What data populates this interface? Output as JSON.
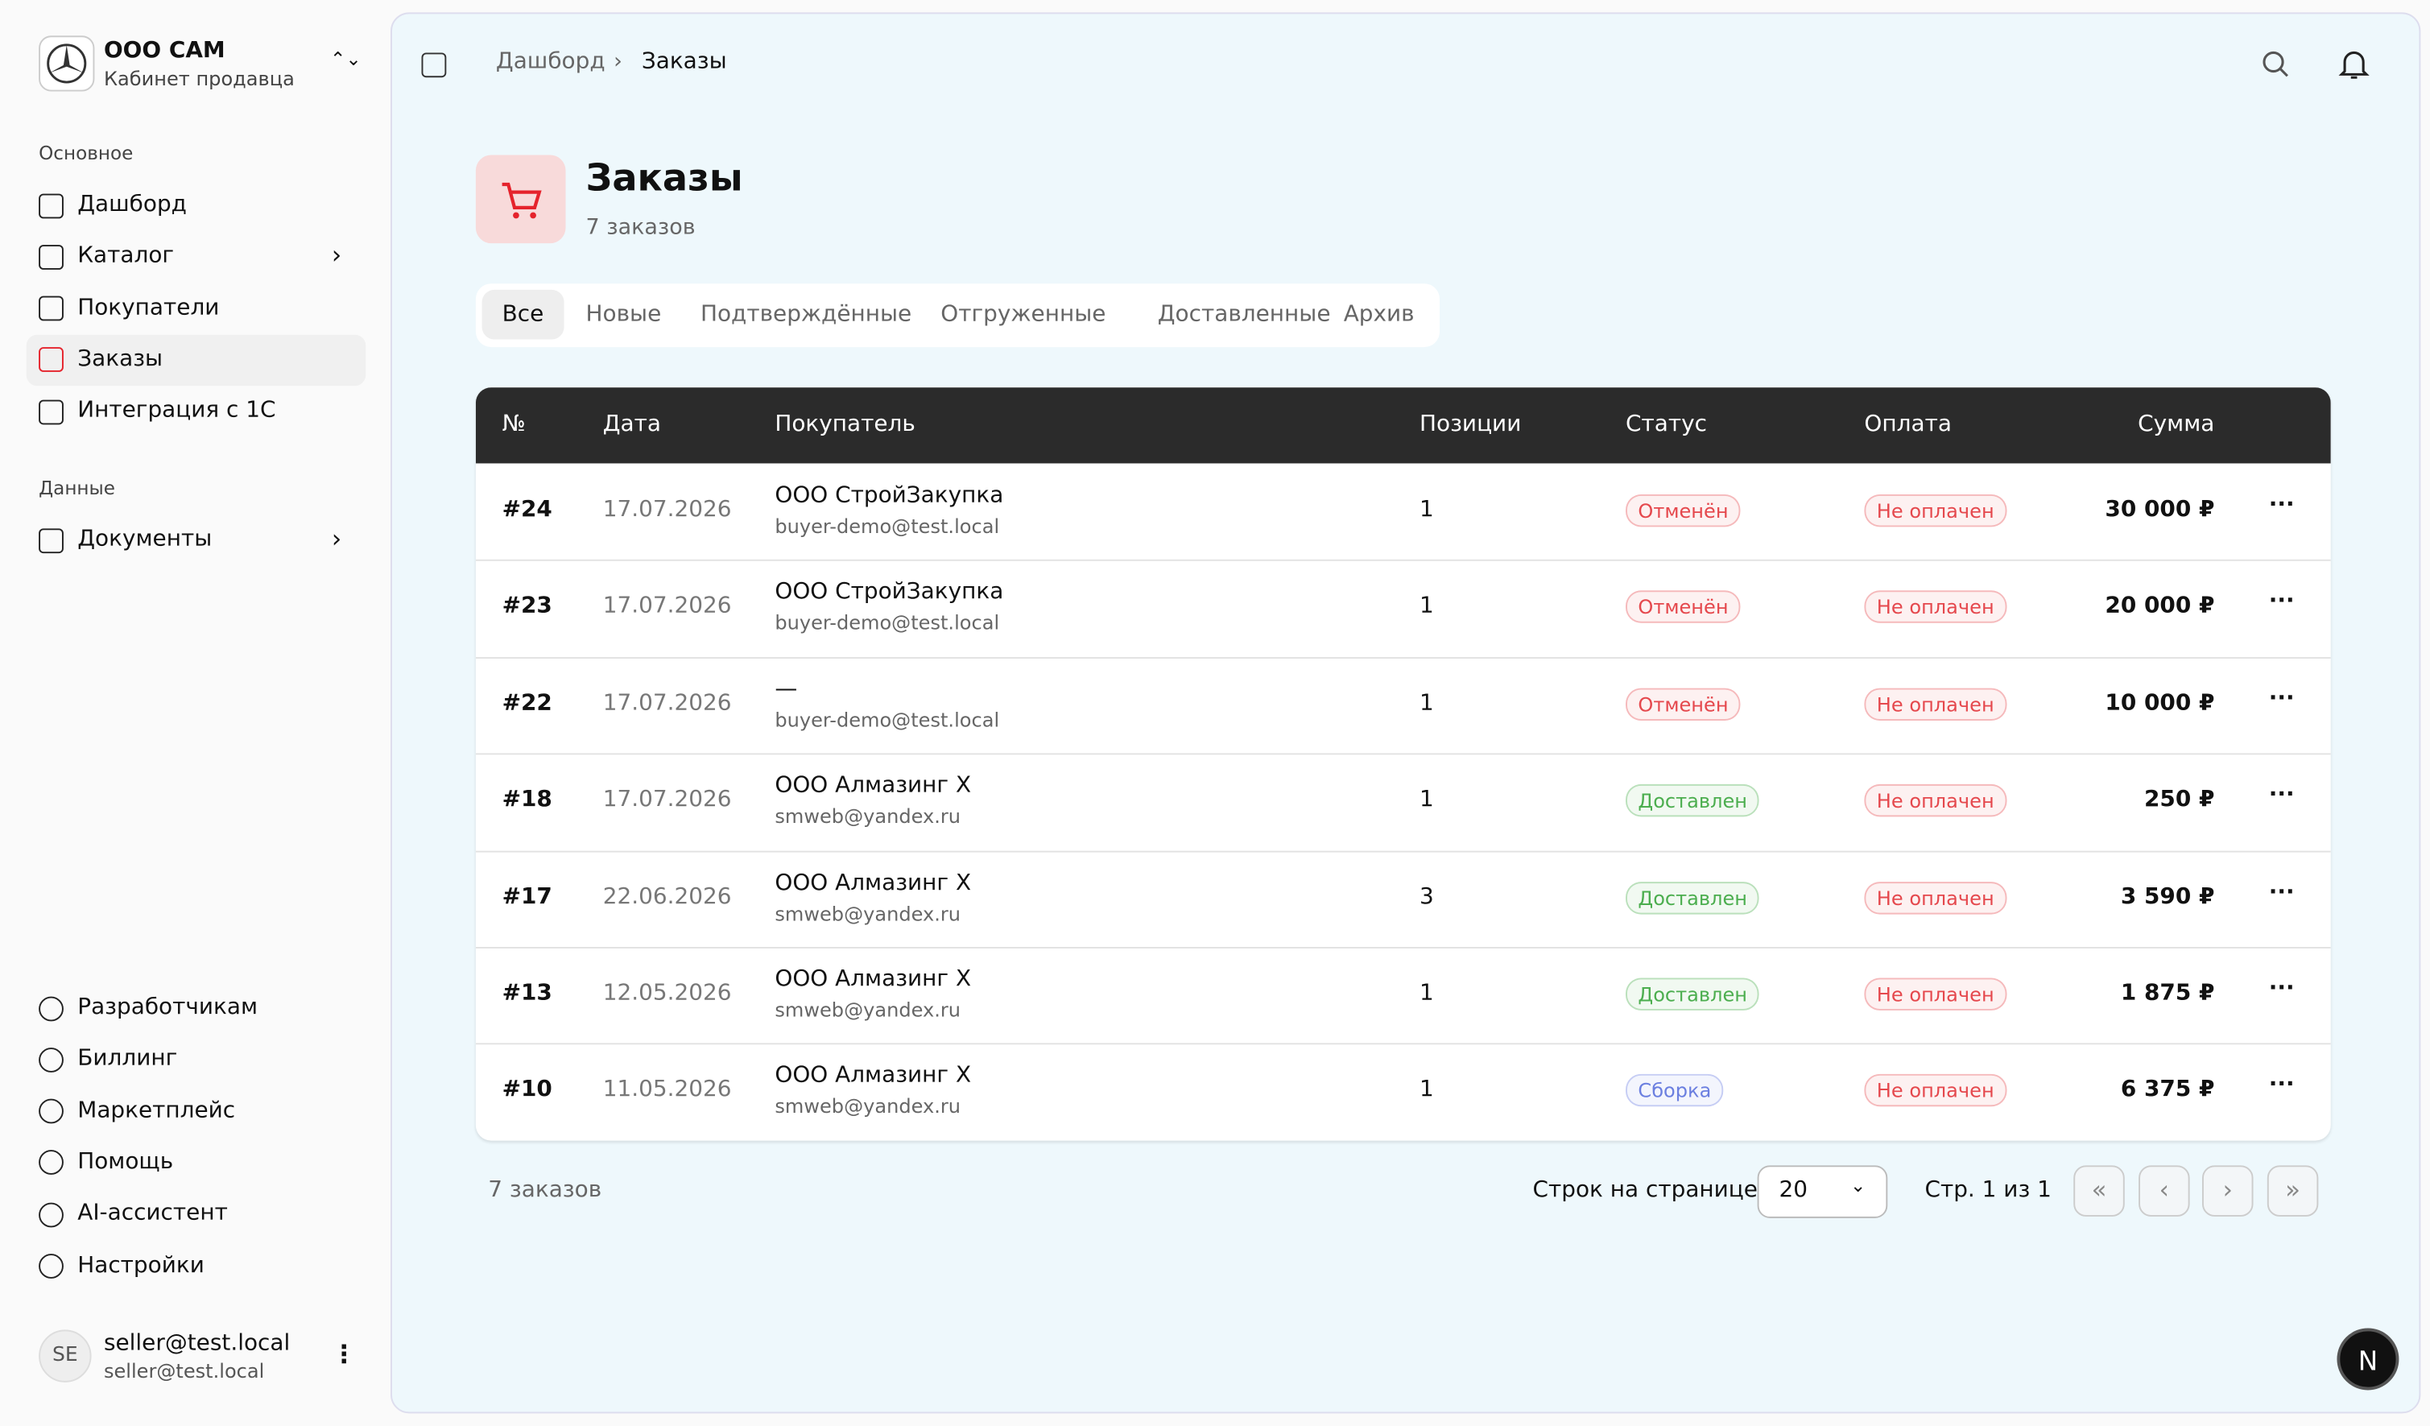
{
  "sidebar": {
    "org_name": "ООО САМ",
    "org_subtitle": "Кабинет продавца",
    "sections": [
      {
        "title": "Основное",
        "items": [
          "Дашборд",
          "Каталог",
          "Покупатели",
          "Заказы",
          "Интеграция с 1С"
        ]
      },
      {
        "title": "Данные",
        "items": [
          "Документы"
        ]
      }
    ],
    "bottom_items": [
      "Разработчикам",
      "Биллинг",
      "Маркетплейс",
      "Помощь",
      "AI-ассистент",
      "Настройки"
    ],
    "user": {
      "initials": "SE",
      "name": "seller@test.local",
      "email": "seller@test.local"
    }
  },
  "header": {
    "breadcrumbs": [
      "Дашборд",
      "Заказы"
    ]
  },
  "page": {
    "title": "Заказы",
    "subtitle": "7 заказов",
    "tabs": [
      "Все",
      "Новые",
      "Подтверждённые",
      "Отгруженные",
      "Доставленные",
      "Архив"
    ]
  },
  "table": {
    "columns": [
      "№",
      "Дата",
      "Покупатель",
      "Позиции",
      "Статус",
      "Оплата",
      "Сумма"
    ],
    "rows": [
      {
        "number": "#24",
        "date": "17.07.2026",
        "buyer": "ООО СтройЗакупка",
        "email": "buyer-demo@test.local",
        "items": "1",
        "status": "Отменён",
        "status_color": "#e5484d",
        "payment": "Не оплачен",
        "payment_color": "#e5484d",
        "sum": "30 000 ₽"
      },
      {
        "number": "#23",
        "date": "17.07.2026",
        "buyer": "ООО СтройЗакупка",
        "email": "buyer-demo@test.local",
        "items": "1",
        "status": "Отменён",
        "status_color": "#e5484d",
        "payment": "Не оплачен",
        "payment_color": "#e5484d",
        "sum": "20 000 ₽"
      },
      {
        "number": "#22",
        "date": "17.07.2026",
        "buyer": "—",
        "email": "buyer-demo@test.local",
        "items": "1",
        "status": "Отменён",
        "status_color": "#e5484d",
        "payment": "Не оплачен",
        "payment_color": "#e5484d",
        "sum": "10 000 ₽"
      },
      {
        "number": "#18",
        "date": "17.07.2026",
        "buyer": "ООО Алмазинг Х",
        "email": "smweb@yandex.ru",
        "items": "1",
        "status": "Доставлен",
        "status_color": "#4cae4f",
        "payment": "Не оплачен",
        "payment_color": "#e5484d",
        "sum": "250 ₽"
      },
      {
        "number": "#17",
        "date": "22.06.2026",
        "buyer": "ООО Алмазинг Х",
        "email": "smweb@yandex.ru",
        "items": "3",
        "status": "Доставлен",
        "status_color": "#4cae4f",
        "payment": "Не оплачен",
        "payment_color": "#e5484d",
        "sum": "3 590 ₽"
      },
      {
        "number": "#13",
        "date": "12.05.2026",
        "buyer": "ООО Алмазинг Х",
        "email": "smweb@yandex.ru",
        "items": "1",
        "status": "Доставлен",
        "status_color": "#4cae4f",
        "payment": "Не оплачен",
        "payment_color": "#e5484d",
        "sum": "1 875 ₽"
      },
      {
        "number": "#10",
        "date": "11.05.2026",
        "buyer": "ООО Алмазинг Х",
        "email": "smweb@yandex.ru",
        "items": "1",
        "status": "Сборка",
        "status_color": "#6b7fe0",
        "payment": "Не оплачен",
        "payment_color": "#e5484d",
        "sum": "6 375 ₽"
      }
    ]
  },
  "footer": {
    "count": "7 заказов",
    "rows_per_page_label": "Строк на странице",
    "rows_per_page": "20",
    "page_info": "Стр. 1 из 1"
  }
}
